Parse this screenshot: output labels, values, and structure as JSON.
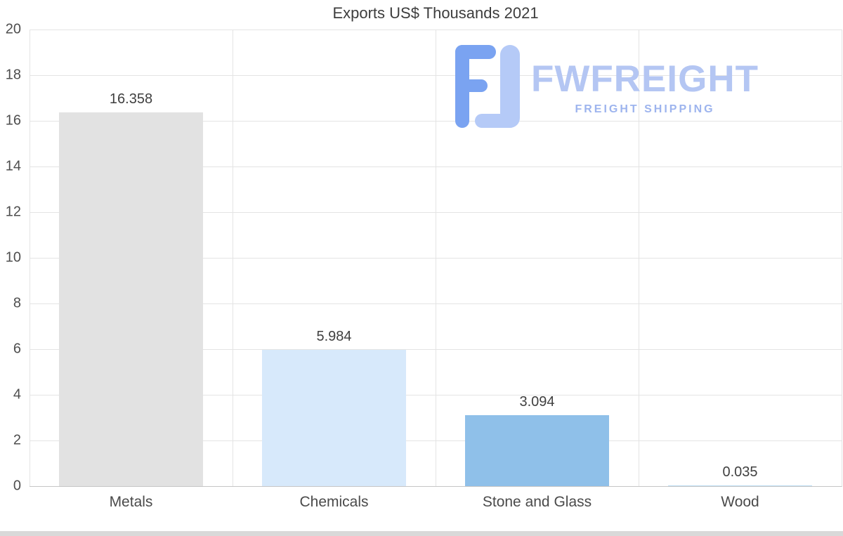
{
  "logo": {
    "name": "FWFREIGHT",
    "tagline": "FREIGHT SHIPPING",
    "colors": {
      "dark": "#7aa3f1",
      "light": "#b5caf7",
      "text": "#b4c6f3",
      "tagline_text": "#9db4ee"
    }
  },
  "chart_data": {
    "type": "bar",
    "title": "Exports US$ Thousands 2021",
    "categories": [
      "Metals",
      "Chemicals",
      "Stone and Glass",
      "Wood"
    ],
    "values": [
      16.358,
      5.984,
      3.094,
      0.035
    ],
    "value_labels": [
      "16.358",
      "5.984",
      "3.094",
      "0.035"
    ],
    "bar_colors": [
      "#e2e2e2",
      "#d7e9fb",
      "#8fc0e9",
      "#bcdcf2"
    ],
    "xlabel": "",
    "ylabel": "",
    "ylim": [
      0,
      20
    ],
    "yticks": [
      20,
      18,
      16,
      14,
      12,
      10,
      8,
      6,
      4,
      2,
      0
    ],
    "grid": true,
    "legend": "none"
  }
}
